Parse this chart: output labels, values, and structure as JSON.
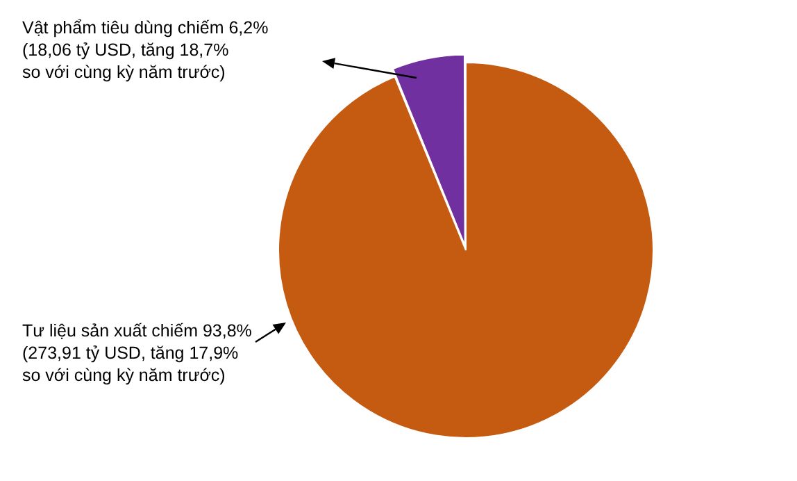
{
  "chart_data": {
    "type": "pie",
    "categories": [
      null,
      null
    ],
    "values": [
      93.8,
      6.2
    ],
    "colors": [
      "#c55a11",
      "#7030a0"
    ],
    "annotations": [
      "Tư liệu sản xuất chiếm 93,8%\n(273,91 tỷ USD, tăng 17,9%\nso với cùng kỳ năm trước)",
      "Vật phẩm tiêu dùng chiếm 6,2%\n(18,06 tỷ USD, tăng 18,7%\nso với cùng kỳ năm trước)"
    ],
    "legend": false
  }
}
